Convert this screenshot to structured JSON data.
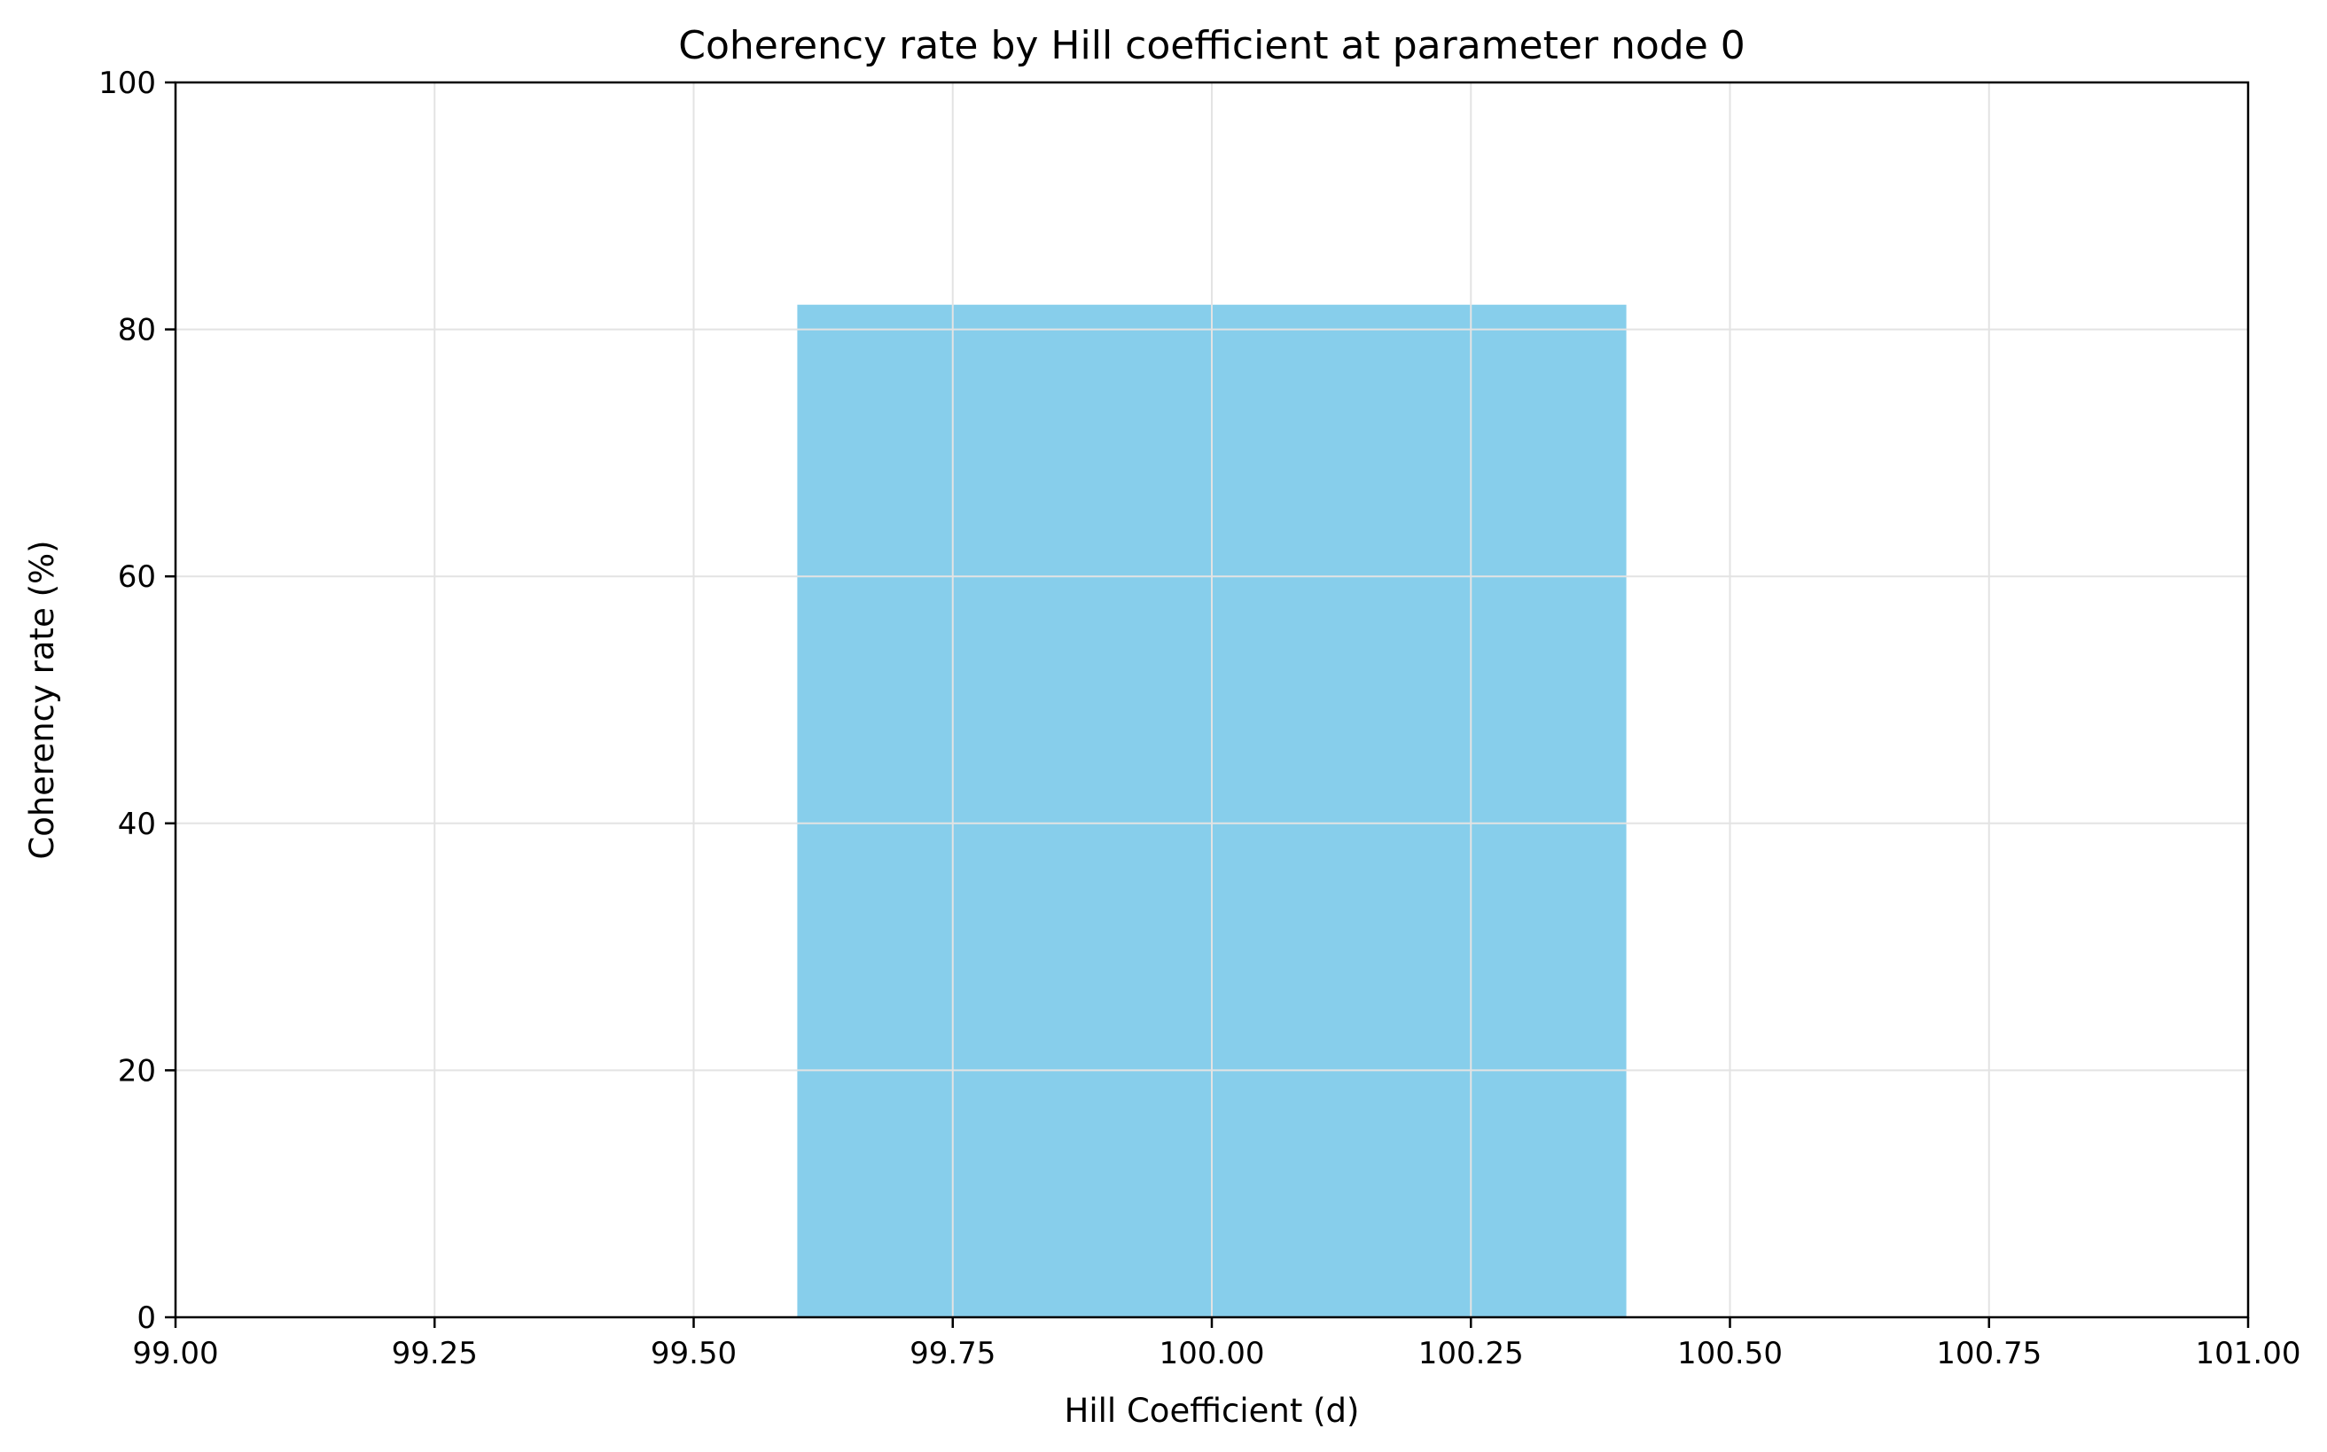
{
  "chart_data": {
    "type": "bar",
    "title": "Coherency rate by Hill coefficient at parameter node 0",
    "xlabel": "Hill Coefficient (d)",
    "ylabel": "Coherency rate (%)",
    "xlim": [
      99.0,
      101.0
    ],
    "ylim": [
      0,
      100
    ],
    "xticks": [
      "99.00",
      "99.25",
      "99.50",
      "99.75",
      "100.00",
      "100.25",
      "100.50",
      "100.75",
      "101.00"
    ],
    "yticks": [
      "0",
      "20",
      "40",
      "60",
      "80",
      "100"
    ],
    "grid": true,
    "bars": [
      {
        "x": 100.0,
        "width": 0.8,
        "value": 82
      }
    ],
    "bar_color": "#87CEEB",
    "grid_color": "#e3e3e3"
  }
}
